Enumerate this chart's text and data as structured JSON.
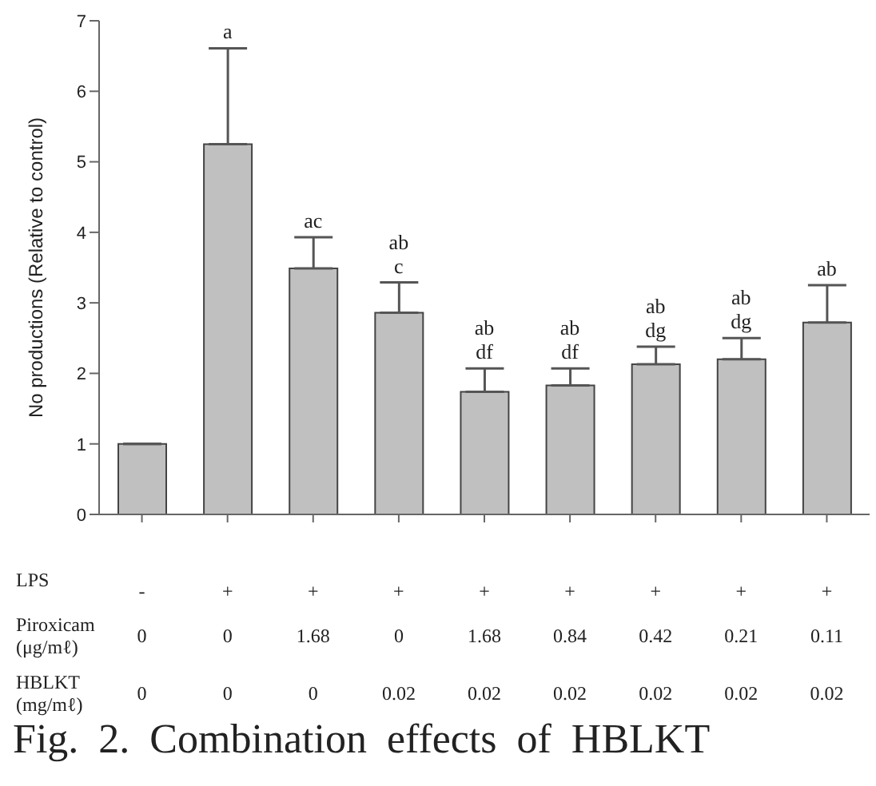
{
  "chart_data": {
    "type": "bar",
    "categories": [
      "-\n0\n0",
      "+\n0\n0",
      "+\n1.68\n0",
      "+\n0\n0.02",
      "+\n1.68\n0.02",
      "+\n0.84\n0.02",
      "+\n0.42\n0.02",
      "+\n0.21\n0.02",
      "+\n0.11\n0.02"
    ],
    "values": [
      1.0,
      5.25,
      3.49,
      2.86,
      1.74,
      1.83,
      2.13,
      2.2,
      2.72
    ],
    "errors": [
      null,
      [
        5.25,
        6.61
      ],
      [
        3.49,
        3.93
      ],
      [
        2.86,
        3.29
      ],
      [
        1.74,
        2.07
      ],
      [
        1.83,
        2.07
      ],
      [
        2.13,
        2.38
      ],
      [
        2.2,
        2.5
      ],
      [
        2.72,
        3.25
      ]
    ],
    "color": "#c0c0c0",
    "ylabel": "No productions (Relative to control)",
    "ylim": [
      0,
      7
    ],
    "yticks": [
      0,
      1,
      2,
      3,
      4,
      5,
      6,
      7
    ],
    "grid": false,
    "legend": false,
    "annotations": [
      {
        "text": "a",
        "x": "+\n0\n0",
        "y": 6.61
      },
      {
        "text": "ac",
        "x": "+\n1.68\n0",
        "y": 3.93
      },
      {
        "text": "ab\nc",
        "x": "+\n0\n0.02",
        "y": 3.29
      },
      {
        "text": "ab\ndf",
        "x": "+\n1.68\n0.02",
        "y": 2.07
      },
      {
        "text": "ab\ndf",
        "x": "+\n0.84\n0.02",
        "y": 2.07
      },
      {
        "text": "ab\ndg",
        "x": "+\n0.42\n0.02",
        "y": 2.38
      },
      {
        "text": "ab\ndg",
        "x": "+\n0.21\n0.02",
        "y": 2.5
      },
      {
        "text": "ab",
        "x": "+\n0.11\n0.02",
        "y": 3.25
      },
      "LPS",
      "Piroxicam\n(μg/mℓ)",
      "HBLKT\n(mg/mℓ)",
      "Fig. 2. Combination effects of HBLKT"
    ]
  }
}
